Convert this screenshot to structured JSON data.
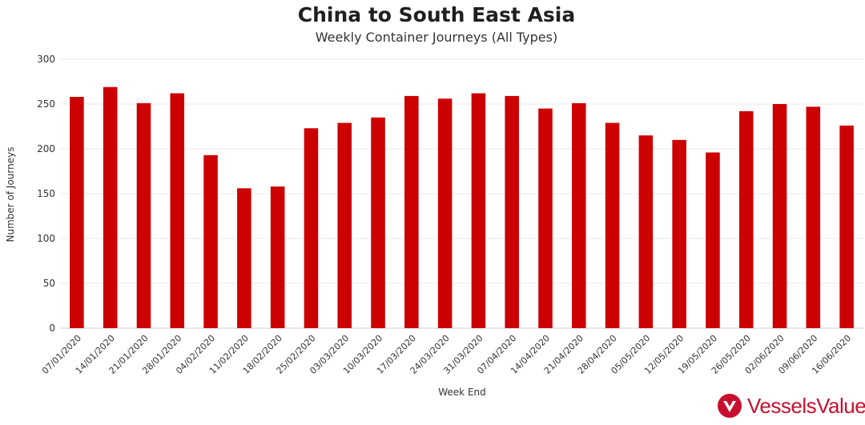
{
  "title": "China to South East Asia",
  "subtitle": "Weekly Container Journeys (All Types)",
  "brand": {
    "name": "VesselsValue",
    "color": "#c8102e",
    "logo_icon": "vesselsvalue-logo-icon"
  },
  "chart_data": {
    "type": "bar",
    "xlabel": "Week End",
    "ylabel": "Number of Journeys",
    "ylim": [
      0,
      300
    ],
    "yticks": [
      0,
      50,
      100,
      150,
      200,
      250,
      300
    ],
    "grid": true,
    "bar_color": "#cc0000",
    "categories": [
      "07/01/2020",
      "14/01/2020",
      "21/01/2020",
      "28/01/2020",
      "04/02/2020",
      "11/02/2020",
      "18/02/2020",
      "25/02/2020",
      "03/03/2020",
      "10/03/2020",
      "17/03/2020",
      "24/03/2020",
      "31/03/2020",
      "07/04/2020",
      "14/04/2020",
      "21/04/2020",
      "28/04/2020",
      "05/05/2020",
      "12/05/2020",
      "19/05/2020",
      "26/05/2020",
      "02/06/2020",
      "09/06/2020",
      "16/06/2020"
    ],
    "values": [
      258,
      269,
      251,
      262,
      193,
      156,
      158,
      223,
      229,
      235,
      259,
      256,
      262,
      259,
      245,
      251,
      229,
      215,
      210,
      196,
      242,
      250,
      247,
      226
    ]
  }
}
